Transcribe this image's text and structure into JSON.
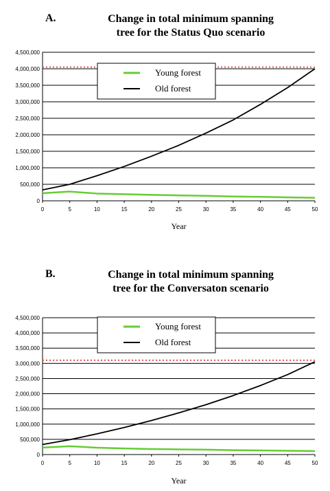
{
  "chart_data": [
    {
      "type": "line",
      "panel_label": "A.",
      "title_lines": [
        "Change in total minimum spanning",
        "tree for the Status Quo scenario"
      ],
      "xlabel": "Year",
      "ylabel": "",
      "x": [
        0,
        5,
        10,
        15,
        20,
        25,
        30,
        35,
        40,
        45,
        50
      ],
      "x_ticks": [
        0,
        5,
        10,
        15,
        20,
        25,
        30,
        35,
        40,
        45,
        50
      ],
      "y_ticks": [
        0,
        500000,
        1000000,
        1500000,
        2000000,
        2500000,
        3000000,
        3500000,
        4000000,
        4500000
      ],
      "y_tick_labels": [
        "0",
        "500,000",
        "1,000,000",
        "1,500,000",
        "2,000,000",
        "2,500,000",
        "3,000,000",
        "3,500,000",
        "4,000,000",
        "4,500,000"
      ],
      "xlim": [
        0,
        50
      ],
      "ylim": [
        0,
        4500000
      ],
      "grid": "horizontal",
      "legend_position": "top-center",
      "reference_line": {
        "y": 4050000,
        "style": "dotted",
        "color": "#e05050"
      },
      "series": [
        {
          "name": "Young forest",
          "color": "#66cc33",
          "values": [
            230000,
            280000,
            220000,
            200000,
            180000,
            165000,
            150000,
            130000,
            120000,
            105000,
            90000
          ]
        },
        {
          "name": "Old forest",
          "color": "#000000",
          "values": [
            330000,
            500000,
            760000,
            1040000,
            1350000,
            1680000,
            2050000,
            2450000,
            2920000,
            3430000,
            4000000
          ]
        }
      ]
    },
    {
      "type": "line",
      "panel_label": "B.",
      "title_lines": [
        "Change in total minimum spanning",
        "tree for the Conversaton scenario"
      ],
      "xlabel": "Year",
      "ylabel": "",
      "x": [
        0,
        5,
        10,
        15,
        20,
        25,
        30,
        35,
        40,
        45,
        50
      ],
      "x_ticks": [
        0,
        5,
        10,
        15,
        20,
        25,
        30,
        35,
        40,
        45,
        50
      ],
      "y_ticks": [
        0,
        500000,
        1000000,
        1500000,
        2000000,
        2500000,
        3000000,
        3500000,
        4000000,
        4500000
      ],
      "y_tick_labels": [
        "0",
        "500,000",
        "1,000,000",
        "1,500,000",
        "2,000,000",
        "2,500,000",
        "3,000,000",
        "3,500,000",
        "4,000,000",
        "4,500,000"
      ],
      "xlim": [
        0,
        50
      ],
      "ylim": [
        0,
        4500000
      ],
      "grid": "horizontal",
      "legend_position": "top-center",
      "reference_line": {
        "y": 3100000,
        "style": "dotted",
        "color": "#e05050"
      },
      "series": [
        {
          "name": "Young forest",
          "color": "#66cc33",
          "values": [
            230000,
            275000,
            225000,
            200000,
            180000,
            170000,
            160000,
            145000,
            135000,
            125000,
            115000
          ]
        },
        {
          "name": "Old forest",
          "color": "#000000",
          "values": [
            330000,
            490000,
            680000,
            890000,
            1120000,
            1370000,
            1640000,
            1940000,
            2270000,
            2630000,
            3050000
          ]
        }
      ]
    }
  ]
}
